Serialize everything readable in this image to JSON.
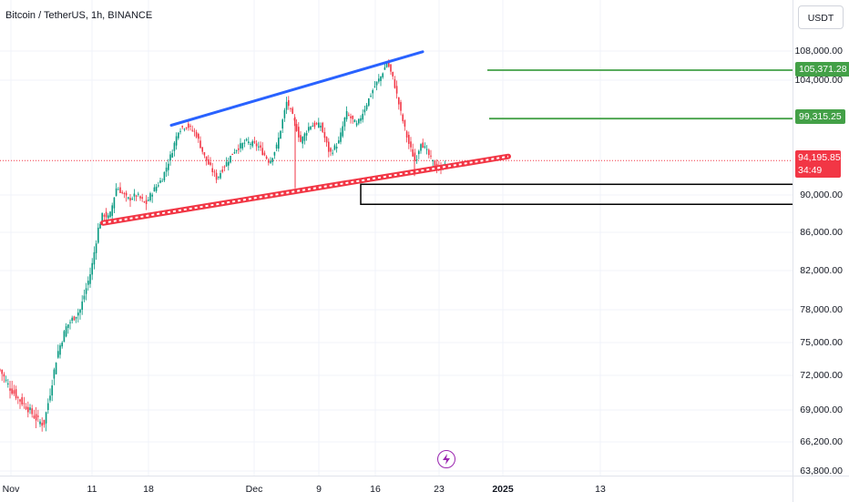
{
  "header": {
    "symbol_title": "Bitcoin / TetherUS, 1h, BINANCE"
  },
  "currency": "USDT",
  "price_axis": {
    "ticks": [
      "108,000.00",
      "104,000.00",
      "90,000.00",
      "86,000.00",
      "82,000.00",
      "78,000.00",
      "75,000.00",
      "72,000.00",
      "69,000.00",
      "66,200.00",
      "63,800.00"
    ]
  },
  "price_labels": {
    "upper_target": "105,371.28",
    "lower_target": "99,315.25",
    "current_price": "94,195.85",
    "countdown": "34:49"
  },
  "time_axis": {
    "ticks": [
      "Nov",
      "11",
      "18",
      "Dec",
      "9",
      "16",
      "23",
      "2025",
      "13"
    ]
  },
  "colors": {
    "up": "#089981",
    "down": "#f23645",
    "resistance_line": "#2962ff",
    "support_line": "#f23645",
    "target_lines": "#43a047",
    "current_price": "#f23645",
    "replay_icon": "#9c27b0"
  },
  "icons": {
    "replay": "lightning-icon"
  },
  "chart_data": {
    "type": "candlestick",
    "symbol": "Bitcoin / TetherUS",
    "interval": "1h",
    "exchange": "BINANCE",
    "current_price": 94195.85,
    "price_range": [
      63800,
      108000
    ],
    "path": [
      [
        0,
        72500
      ],
      [
        10,
        71000
      ],
      [
        20,
        70000
      ],
      [
        30,
        69200
      ],
      [
        40,
        68200
      ],
      [
        48,
        67700
      ],
      [
        55,
        70500
      ],
      [
        63,
        74000
      ],
      [
        73,
        76500
      ],
      [
        88,
        78000
      ],
      [
        100,
        82000
      ],
      [
        108,
        86500
      ],
      [
        113,
        88000
      ],
      [
        120,
        87500
      ],
      [
        128,
        91000
      ],
      [
        140,
        89500
      ],
      [
        150,
        90000
      ],
      [
        160,
        89000
      ],
      [
        168,
        90500
      ],
      [
        178,
        92000
      ],
      [
        188,
        95000
      ],
      [
        196,
        98000
      ],
      [
        205,
        98500
      ],
      [
        215,
        97500
      ],
      [
        225,
        94500
      ],
      [
        238,
        92000
      ],
      [
        246,
        93500
      ],
      [
        258,
        95500
      ],
      [
        270,
        96500
      ],
      [
        283,
        96000
      ],
      [
        296,
        94000
      ],
      [
        304,
        96000
      ],
      [
        315,
        101500
      ],
      [
        323,
        99000
      ],
      [
        330,
        96500
      ],
      [
        340,
        98500
      ],
      [
        352,
        98500
      ],
      [
        362,
        95000
      ],
      [
        372,
        96500
      ],
      [
        380,
        100000
      ],
      [
        392,
        98500
      ],
      [
        402,
        101000
      ],
      [
        410,
        103000
      ],
      [
        418,
        104500
      ],
      [
        425,
        106500
      ],
      [
        432,
        104000
      ],
      [
        440,
        100000
      ],
      [
        448,
        96500
      ],
      [
        456,
        94000
      ],
      [
        462,
        96500
      ],
      [
        470,
        95000
      ],
      [
        478,
        93500
      ],
      [
        484,
        93000
      ],
      [
        489,
        94200
      ]
    ],
    "drawings": {
      "resistance_trendline": {
        "from": [
          188,
          98500
        ],
        "to": [
          464,
          107900
        ]
      },
      "support_trendline": {
        "from": [
          113,
          87000
        ],
        "to": [
          558,
          94700
        ]
      },
      "target_line_upper": 105371.28,
      "target_line_lower": 99315.25,
      "rectangle_zone": [
        89000,
        91300
      ]
    }
  }
}
